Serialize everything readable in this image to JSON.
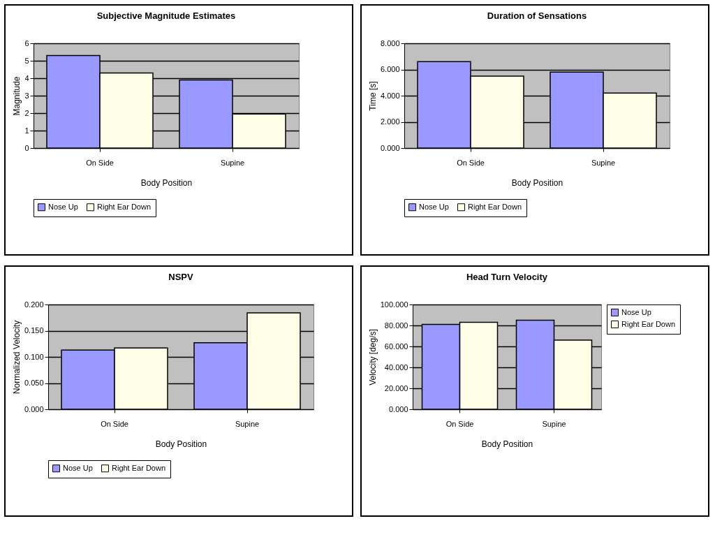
{
  "chart_data": [
    {
      "type": "bar",
      "title": "Subjective Magnitude Estimates",
      "xlabel": "Body Position",
      "ylabel": "Magnitude",
      "categories": [
        "On Side",
        "Supine"
      ],
      "series": [
        {
          "name": "Nose Up",
          "color": "#9999ff",
          "values": [
            5.3,
            3.9
          ]
        },
        {
          "name": "Right Ear Down",
          "color": "#ffffe8",
          "values": [
            4.3,
            1.95
          ]
        }
      ],
      "ylim": [
        0,
        6
      ],
      "yticks": [
        0,
        1,
        2,
        3,
        4,
        5,
        6
      ],
      "grid": "y",
      "legend": "bottom"
    },
    {
      "type": "bar",
      "title": "Duration of Sensations",
      "xlabel": "Body Position",
      "ylabel": "Time [s]",
      "categories": [
        "On Side",
        "Supine"
      ],
      "series": [
        {
          "name": "Nose Up",
          "color": "#9999ff",
          "values": [
            6.6,
            5.8
          ]
        },
        {
          "name": "Right Ear Down",
          "color": "#ffffe8",
          "values": [
            5.5,
            4.2
          ]
        }
      ],
      "ylim": [
        0,
        8
      ],
      "yticks": [
        {
          "value": 0,
          "label": "0.000"
        },
        {
          "value": 2,
          "label": "2.000"
        },
        {
          "value": 4,
          "label": "4.000"
        },
        {
          "value": 6,
          "label": "6.000"
        },
        {
          "value": 8,
          "label": "8.000"
        }
      ],
      "grid": "y",
      "legend": "bottom"
    },
    {
      "type": "bar",
      "title": "NSPV",
      "xlabel": "Body Position",
      "ylabel": "Normalized Velocity",
      "categories": [
        "On Side",
        "Supine"
      ],
      "series": [
        {
          "name": "Nose Up",
          "color": "#9999ff",
          "values": [
            0.113,
            0.127
          ]
        },
        {
          "name": "Right Ear Down",
          "color": "#ffffe8",
          "values": [
            0.117,
            0.184
          ]
        }
      ],
      "ylim": [
        0,
        0.2
      ],
      "yticks": [
        {
          "value": 0,
          "label": "0.000"
        },
        {
          "value": 0.05,
          "label": "0.050"
        },
        {
          "value": 0.1,
          "label": "0.100"
        },
        {
          "value": 0.15,
          "label": "0.150"
        },
        {
          "value": 0.2,
          "label": "0.200"
        }
      ],
      "grid": "y",
      "legend": "bottom"
    },
    {
      "type": "bar",
      "title": "Head Turn Velocity",
      "xlabel": "Body Position",
      "ylabel": "Velocity [deg/s]",
      "categories": [
        "On Side",
        "Supine"
      ],
      "series": [
        {
          "name": "Nose Up",
          "color": "#9999ff",
          "values": [
            81,
            85
          ]
        },
        {
          "name": "Right Ear Down",
          "color": "#ffffe8",
          "values": [
            83,
            66
          ]
        }
      ],
      "ylim": [
        0,
        100
      ],
      "yticks": [
        {
          "value": 0,
          "label": "0.000"
        },
        {
          "value": 20,
          "label": "20.000"
        },
        {
          "value": 40,
          "label": "40.000"
        },
        {
          "value": 60,
          "label": "60.000"
        },
        {
          "value": 80,
          "label": "80.000"
        },
        {
          "value": 100,
          "label": "100.000"
        }
      ],
      "grid": "y",
      "legend": "right"
    }
  ]
}
